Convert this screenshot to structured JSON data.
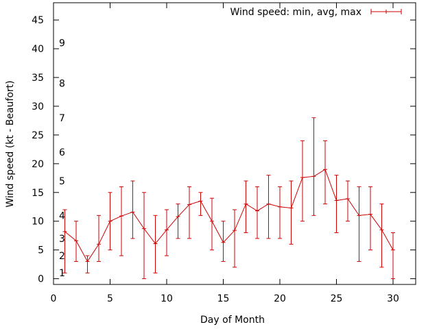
{
  "chart_data": {
    "type": "line",
    "title": "",
    "xlabel": "Day of Month",
    "ylabel": "Wind speed (kt - Beaufort)",
    "xlim": [
      0,
      32
    ],
    "ylim": [
      -1,
      48
    ],
    "xticks": [
      0,
      5,
      10,
      15,
      20,
      25,
      30
    ],
    "yticks": [
      0,
      5,
      10,
      15,
      20,
      25,
      30,
      35,
      40,
      45
    ],
    "grid": false,
    "legend_position": "top-right",
    "colors": {
      "series": "#cc0000",
      "axis": "#000000"
    },
    "beaufort_scale": [
      {
        "label": "1",
        "kt": 1
      },
      {
        "label": "2",
        "kt": 4
      },
      {
        "label": "3",
        "kt": 7
      },
      {
        "label": "4",
        "kt": 11
      },
      {
        "label": "5",
        "kt": 17
      },
      {
        "label": "6",
        "kt": 22
      },
      {
        "label": "7",
        "kt": 28
      },
      {
        "label": "8",
        "kt": 34
      },
      {
        "label": "9",
        "kt": 41
      }
    ],
    "series": [
      {
        "name": "Wind speed: min, avg, max",
        "points": [
          {
            "x": 1,
            "avg": 8.2,
            "min": 1,
            "max": 12
          },
          {
            "x": 2,
            "avg": 6.6,
            "min": 3,
            "max": 10
          },
          {
            "x": 3,
            "avg": 3.0,
            "min": 1,
            "max": 4
          },
          {
            "x": 4,
            "avg": 6.0,
            "min": 3,
            "max": 11
          },
          {
            "x": 5,
            "avg": 10.0,
            "min": 5,
            "max": 15
          },
          {
            "x": 6,
            "avg": 10.9,
            "min": 4,
            "max": 16
          },
          {
            "x": 7,
            "avg": 11.6,
            "min": 7,
            "max": 17
          },
          {
            "x": 8,
            "avg": 8.7,
            "min": 0,
            "max": 15
          },
          {
            "x": 9,
            "avg": 6.1,
            "min": 1,
            "max": 11
          },
          {
            "x": 10,
            "avg": 8.5,
            "min": 4,
            "max": 12
          },
          {
            "x": 11,
            "avg": 10.8,
            "min": 7,
            "max": 13
          },
          {
            "x": 12,
            "avg": 12.9,
            "min": 7,
            "max": 16
          },
          {
            "x": 13,
            "avg": 13.5,
            "min": 11,
            "max": 15
          },
          {
            "x": 14,
            "avg": 10.0,
            "min": 5,
            "max": 14
          },
          {
            "x": 15,
            "avg": 6.3,
            "min": 3,
            "max": 10
          },
          {
            "x": 16,
            "avg": 8.4,
            "min": 2,
            "max": 12
          },
          {
            "x": 17,
            "avg": 13.0,
            "min": 8,
            "max": 17
          },
          {
            "x": 18,
            "avg": 11.8,
            "min": 7,
            "max": 16
          },
          {
            "x": 19,
            "avg": 13.0,
            "min": 7,
            "max": 18
          },
          {
            "x": 20,
            "avg": 12.5,
            "min": 7,
            "max": 16
          },
          {
            "x": 21,
            "avg": 12.3,
            "min": 6,
            "max": 17
          },
          {
            "x": 22,
            "avg": 17.6,
            "min": 10,
            "max": 24
          },
          {
            "x": 23,
            "avg": 17.8,
            "min": 11,
            "max": 28
          },
          {
            "x": 24,
            "avg": 19.0,
            "min": 13,
            "max": 24
          },
          {
            "x": 25,
            "avg": 13.6,
            "min": 8,
            "max": 18
          },
          {
            "x": 26,
            "avg": 13.9,
            "min": 10,
            "max": 17
          },
          {
            "x": 27,
            "avg": 11.0,
            "min": 3,
            "max": 16
          },
          {
            "x": 28,
            "avg": 11.2,
            "min": 5,
            "max": 16
          },
          {
            "x": 29,
            "avg": 8.5,
            "min": 2,
            "max": 13
          },
          {
            "x": 30,
            "avg": 5.0,
            "min": 0,
            "max": 8
          }
        ]
      }
    ]
  }
}
